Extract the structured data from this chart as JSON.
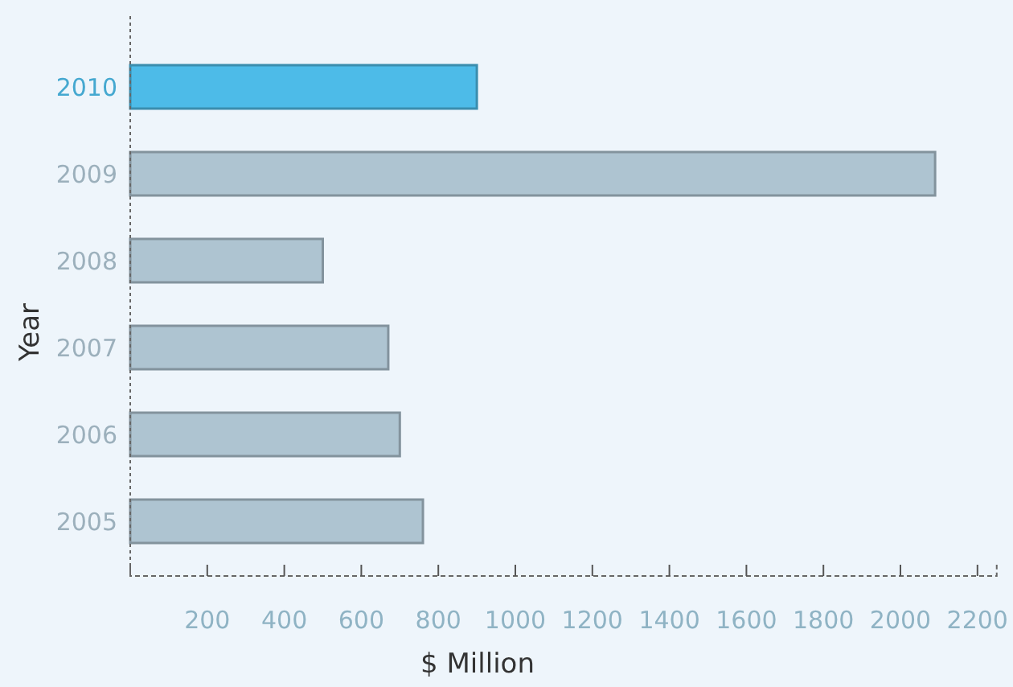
{
  "chart_data": {
    "type": "bar",
    "orientation": "horizontal",
    "xlabel": "$ Million",
    "ylabel": "Year",
    "categories": [
      "2010",
      "2009",
      "2008",
      "2007",
      "2006",
      "2005"
    ],
    "values": [
      900,
      2090,
      500,
      670,
      700,
      760
    ],
    "colors": [
      "#4dbbe8",
      "#aec4d1",
      "#aec4d1",
      "#aec4d1",
      "#aec4d1",
      "#aec4d1"
    ],
    "xlim": [
      0,
      2250
    ],
    "xticks": [
      200,
      400,
      600,
      800,
      1000,
      1200,
      1400,
      1600,
      1800,
      2000,
      2200
    ],
    "grid": false
  }
}
